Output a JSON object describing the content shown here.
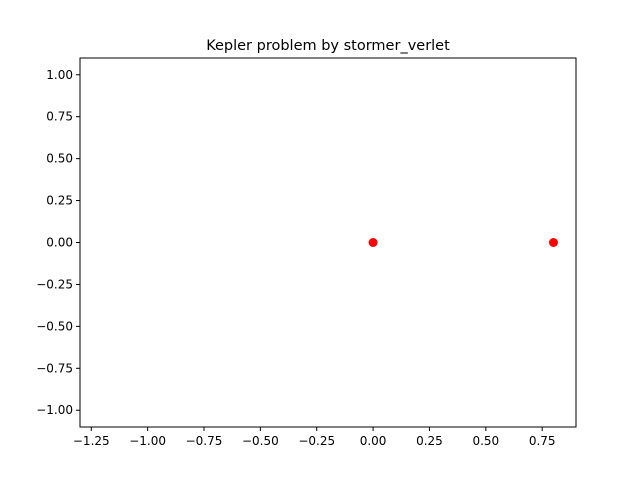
{
  "chart_data": {
    "type": "scatter",
    "title": "Kepler problem by stormer_verlet",
    "xlabel": "",
    "ylabel": "",
    "xlim": [
      -1.3,
      0.9
    ],
    "ylim": [
      -1.1,
      1.1
    ],
    "xticks": [
      -1.25,
      -1.0,
      -0.75,
      -0.5,
      -0.25,
      0.0,
      0.25,
      0.5,
      0.75
    ],
    "xtick_labels": [
      "−1.25",
      "−1.00",
      "−0.75",
      "−0.50",
      "−0.25",
      "0.00",
      "0.25",
      "0.50",
      "0.75"
    ],
    "yticks": [
      -1.0,
      -0.75,
      -0.5,
      -0.25,
      0.0,
      0.25,
      0.5,
      0.75,
      1.0
    ],
    "ytick_labels": [
      "−1.00",
      "−0.75",
      "−0.50",
      "−0.25",
      "0.00",
      "0.25",
      "0.50",
      "0.75",
      "1.00"
    ],
    "grid": false,
    "marker_color": "#ff0000",
    "series": [
      {
        "x": [
          0.0,
          0.8
        ],
        "y": [
          0.0,
          0.0
        ]
      }
    ]
  }
}
